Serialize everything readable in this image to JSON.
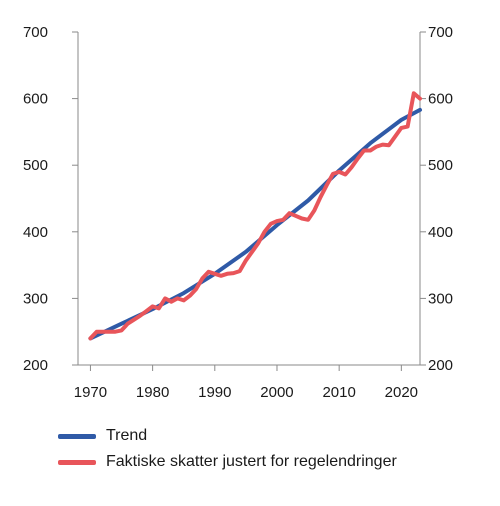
{
  "chart_data": {
    "type": "line",
    "title": "",
    "xlabel": "",
    "ylabel": "",
    "xlim": [
      1968,
      2023
    ],
    "ylim": [
      200,
      700
    ],
    "yticks": [
      200,
      300,
      400,
      500,
      600,
      700
    ],
    "ytick_labels": [
      "200",
      "300",
      "400",
      "500",
      "600",
      "700"
    ],
    "xticks": [
      1970,
      1980,
      1990,
      2000,
      2010,
      2020
    ],
    "xtick_labels": [
      "1970",
      "1980",
      "1990",
      "2000",
      "2010",
      "2020"
    ],
    "grid": false,
    "right_axis": true,
    "legend_position": "bottom",
    "series": [
      {
        "name": "Trend",
        "color": "#2f5aa7",
        "x": [
          1970,
          1975,
          1980,
          1985,
          1990,
          1995,
          2000,
          2005,
          2010,
          2015,
          2020,
          2023
        ],
        "y": [
          240,
          262,
          284,
          308,
          337,
          370,
          410,
          447,
          492,
          533,
          568,
          583
        ]
      },
      {
        "name": "Faktiske skatter justert for regelendringer",
        "color": "#e8555a",
        "x": [
          1970,
          1971,
          1972,
          1973,
          1974,
          1975,
          1976,
          1977,
          1978,
          1979,
          1980,
          1981,
          1982,
          1983,
          1984,
          1985,
          1986,
          1987,
          1988,
          1989,
          1990,
          1991,
          1992,
          1993,
          1994,
          1995,
          1996,
          1997,
          1998,
          1999,
          2000,
          2001,
          2002,
          2003,
          2004,
          2005,
          2006,
          2007,
          2008,
          2009,
          2010,
          2011,
          2012,
          2013,
          2014,
          2015,
          2016,
          2017,
          2018,
          2019,
          2020,
          2021,
          2022,
          2023
        ],
        "y": [
          240,
          250,
          250,
          250,
          250,
          252,
          262,
          268,
          274,
          281,
          288,
          285,
          300,
          295,
          300,
          297,
          304,
          314,
          330,
          340,
          337,
          334,
          337,
          338,
          341,
          357,
          370,
          383,
          400,
          412,
          416,
          418,
          428,
          424,
          420,
          418,
          432,
          452,
          470,
          487,
          490,
          486,
          497,
          510,
          522,
          522,
          528,
          531,
          530,
          543,
          556,
          558,
          608,
          600
        ]
      }
    ]
  }
}
